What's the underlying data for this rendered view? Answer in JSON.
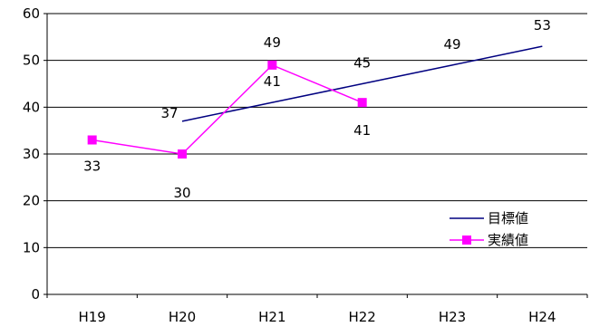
{
  "chart_data": {
    "type": "line",
    "title": "",
    "xlabel": "",
    "ylabel": "",
    "categories": [
      "H19",
      "H20",
      "H21",
      "H22",
      "H23",
      "H24"
    ],
    "ylim": [
      0,
      60
    ],
    "yticks": [
      0,
      10,
      20,
      30,
      40,
      50,
      60
    ],
    "grid": true,
    "legend_position": "bottom-right",
    "series": [
      {
        "name": "目標値",
        "color": "#000080",
        "marker": "none",
        "values": [
          null,
          37,
          41,
          45,
          49,
          53
        ],
        "data_labels": [
          "",
          "37",
          "41",
          "45",
          "49",
          "53"
        ]
      },
      {
        "name": "実績値",
        "color": "#ff00ff",
        "marker": "square",
        "values": [
          33,
          30,
          49,
          41,
          null,
          null
        ],
        "data_labels": [
          "33",
          "30",
          "49",
          "41",
          "",
          ""
        ]
      }
    ]
  }
}
